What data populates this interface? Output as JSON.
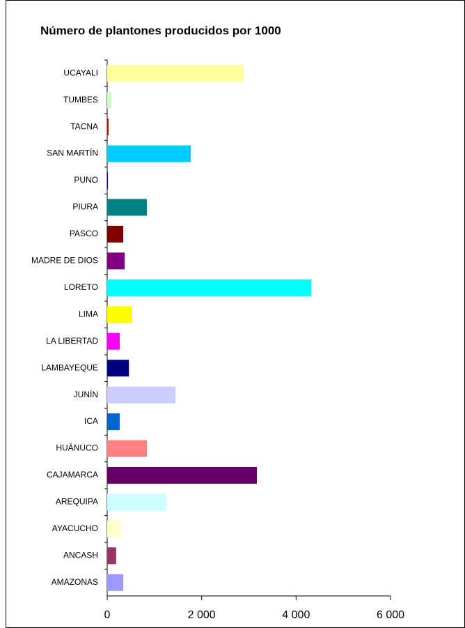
{
  "chart_data": {
    "type": "bar",
    "orientation": "horizontal",
    "title": "Número de plantones producidos por 1000",
    "categories": [
      "UCAYALI",
      "TUMBES",
      "TACNA",
      "SAN MARTÍN",
      "PUNO",
      "PIURA",
      "PASCO",
      "MADRE DE DIOS",
      "LORETO",
      "LIMA",
      "LA LIBERTAD",
      "LAMBAYEQUE",
      "JUNÍN",
      "ICA",
      "HUÁNUCO",
      "CAJAMARCA",
      "AREQUIPA",
      "AYACUCHO",
      "ANCASH",
      "AMAZONAS"
    ],
    "values": [
      2890,
      90,
      30,
      1770,
      15,
      840,
      340,
      370,
      4320,
      530,
      265,
      460,
      1445,
      265,
      840,
      3170,
      1255,
      295,
      190,
      340
    ],
    "colors": [
      "#ffff99",
      "#ccffcc",
      "#cc0000",
      "#00ccff",
      "#000080",
      "#008080",
      "#800000",
      "#800080",
      "#00ffff",
      "#ffff00",
      "#ff00ff",
      "#000080",
      "#ccccff",
      "#0066cc",
      "#ff8080",
      "#660066",
      "#ccffff",
      "#ffffcc",
      "#993366",
      "#9999ff"
    ],
    "xlim": [
      0,
      6000
    ],
    "xticks": [
      0,
      {
        "value": 2000,
        "label": "2 000"
      },
      {
        "value": 4000,
        "label": "4 000"
      },
      {
        "value": 6000,
        "label": "6 000"
      }
    ],
    "grid": false
  }
}
